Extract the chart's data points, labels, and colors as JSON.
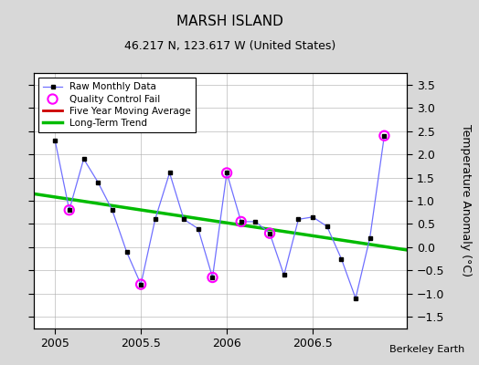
{
  "title": "MARSH ISLAND",
  "subtitle": "46.217 N, 123.617 W (United States)",
  "credit": "Berkeley Earth",
  "ylabel": "Temperature Anomaly (°C)",
  "xlim": [
    2004.875,
    2007.05
  ],
  "ylim": [
    -1.75,
    3.75
  ],
  "yticks": [
    -1.5,
    -1.0,
    -0.5,
    0.0,
    0.5,
    1.0,
    1.5,
    2.0,
    2.5,
    3.0,
    3.5
  ],
  "xticks": [
    2005.0,
    2005.5,
    2006.0,
    2006.5
  ],
  "xticklabels": [
    "2005",
    "2005.5",
    "2006",
    "2006.5"
  ],
  "raw_x": [
    2005.0,
    2005.083,
    2005.167,
    2005.25,
    2005.333,
    2005.417,
    2005.5,
    2005.583,
    2005.667,
    2005.75,
    2005.833,
    2005.917,
    2006.0,
    2006.083,
    2006.167,
    2006.25,
    2006.333,
    2006.417,
    2006.5,
    2006.583,
    2006.667,
    2006.75,
    2006.833,
    2006.917
  ],
  "raw_y": [
    2.3,
    0.8,
    1.9,
    1.4,
    0.8,
    -0.1,
    -0.8,
    0.6,
    1.6,
    0.6,
    0.4,
    -0.65,
    1.6,
    0.55,
    0.55,
    0.3,
    -0.6,
    0.6,
    0.65,
    0.45,
    -0.25,
    -1.1,
    0.2,
    2.4
  ],
  "qc_fail_x": [
    2005.083,
    2005.5,
    2005.917,
    2006.0,
    2006.083,
    2006.25,
    2006.917
  ],
  "qc_fail_y": [
    0.8,
    -0.8,
    -0.65,
    1.6,
    0.55,
    0.3,
    2.4
  ],
  "trend_x": [
    2004.875,
    2007.05
  ],
  "trend_y": [
    1.15,
    -0.06
  ],
  "raw_line_color": "#7070ff",
  "raw_marker_color": "#000000",
  "qc_color": "#ff00ff",
  "moving_avg_color": "#cc0000",
  "trend_color": "#00bb00",
  "bg_color": "#d8d8d8",
  "plot_bg_color": "#ffffff",
  "grid_color": "#aaaaaa",
  "title_fontsize": 11,
  "subtitle_fontsize": 9,
  "tick_fontsize": 9,
  "ylabel_fontsize": 9
}
